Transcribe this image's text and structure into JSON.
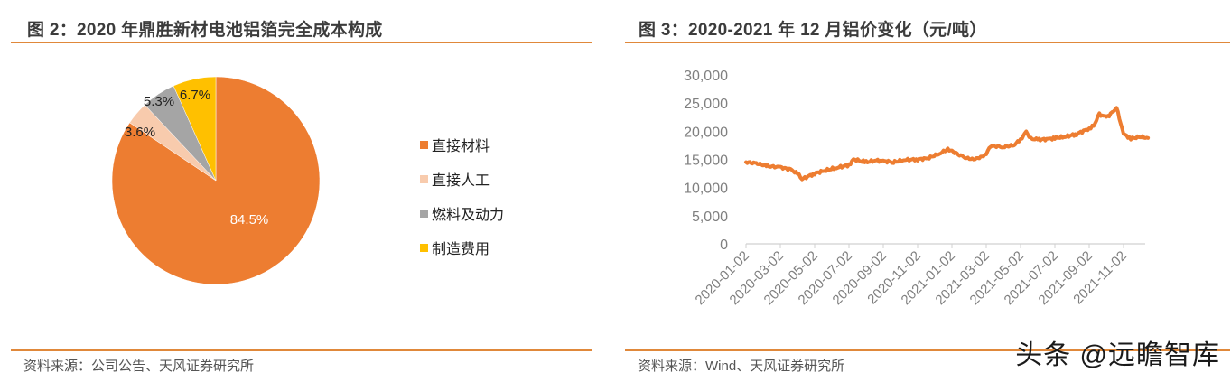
{
  "left": {
    "title": "图 2：2020 年鼎胜新材电池铝箔完全成本构成",
    "source": "资料来源：公司公告、天风证券研究所"
  },
  "right": {
    "title": "图 3：2020-2021 年 12 月铝价变化（元/吨）",
    "source": "资料来源：Wind、天风证券研究所"
  },
  "watermark": "头条 @远瞻智库",
  "colors": {
    "accent_rule": "#e0883a",
    "line": "#ed7d31",
    "slice_direct_material": "#ed7d31",
    "slice_direct_labor": "#f8cbad",
    "slice_fuel_power": "#a5a5a5",
    "slice_manufacturing": "#ffc000"
  },
  "chart_data": [
    {
      "type": "pie",
      "title": "图 2：2020 年鼎胜新材电池铝箔完全成本构成",
      "categories": [
        "直接材料",
        "直接人工",
        "燃料及动力",
        "制造费用"
      ],
      "values": [
        84.5,
        3.6,
        5.3,
        6.7
      ],
      "labels": [
        "84.5%",
        "3.6%",
        "5.3%",
        "6.7%"
      ],
      "colors": [
        "#ed7d31",
        "#f8cbad",
        "#a5a5a5",
        "#ffc000"
      ],
      "legend_position": "right"
    },
    {
      "type": "line",
      "title": "图 3：2020-2021 年 12 月铝价变化（元/吨）",
      "xlabel": "",
      "ylabel": "",
      "ylim": [
        0,
        30000
      ],
      "yticks": [
        "0",
        "5,000",
        "10,000",
        "15,000",
        "20,000",
        "25,000",
        "30,000"
      ],
      "xticks": [
        "2020-01-02",
        "2020-03-02",
        "2020-05-02",
        "2020-07-02",
        "2020-09-02",
        "2020-11-02",
        "2021-01-02",
        "2021-03-02",
        "2021-05-02",
        "2021-07-02",
        "2021-09-02",
        "2021-11-02"
      ],
      "grid": false,
      "series": [
        {
          "name": "铝价",
          "x": [
            "2020-01-02",
            "2020-01-20",
            "2020-02-10",
            "2020-03-02",
            "2020-03-20",
            "2020-04-02",
            "2020-04-10",
            "2020-05-02",
            "2020-05-20",
            "2020-06-10",
            "2020-07-02",
            "2020-07-10",
            "2020-08-02",
            "2020-08-20",
            "2020-09-02",
            "2020-09-20",
            "2020-10-10",
            "2020-11-02",
            "2020-11-20",
            "2020-12-10",
            "2020-12-25",
            "2021-01-02",
            "2021-01-20",
            "2021-02-05",
            "2021-02-20",
            "2021-03-02",
            "2021-03-10",
            "2021-04-02",
            "2021-04-20",
            "2021-05-02",
            "2021-05-12",
            "2021-05-20",
            "2021-06-02",
            "2021-06-20",
            "2021-07-02",
            "2021-07-20",
            "2021-08-10",
            "2021-09-02",
            "2021-09-10",
            "2021-09-20",
            "2021-10-02",
            "2021-10-12",
            "2021-10-20",
            "2021-11-02",
            "2021-11-15",
            "2021-12-01",
            "2021-12-15"
          ],
          "values": [
            14500,
            14300,
            13800,
            13600,
            13200,
            12500,
            11500,
            12500,
            13000,
            13500,
            14000,
            15000,
            14500,
            14800,
            14700,
            14500,
            14900,
            15000,
            15200,
            16000,
            16800,
            16500,
            15500,
            15000,
            15200,
            16000,
            17400,
            17200,
            17500,
            18500,
            19900,
            18700,
            18500,
            18600,
            18800,
            19000,
            19500,
            20500,
            21000,
            23000,
            22500,
            23200,
            24200,
            19500,
            18700,
            19000,
            18800
          ]
        }
      ]
    }
  ]
}
